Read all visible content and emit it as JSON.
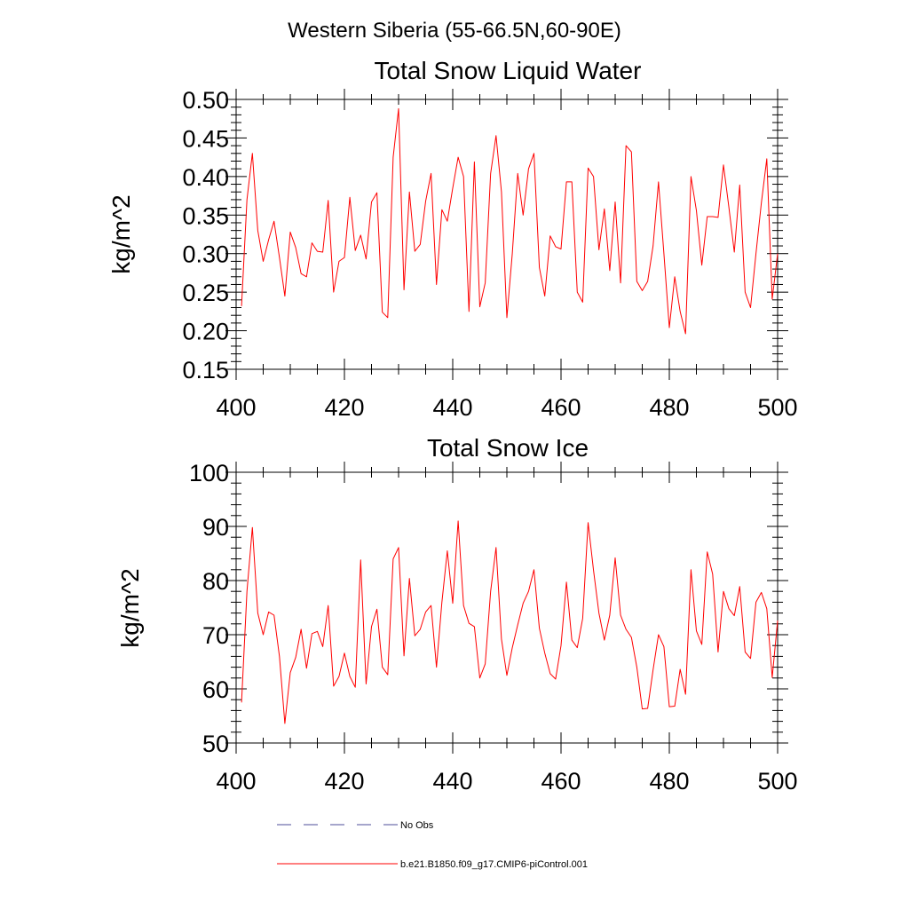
{
  "figure": {
    "title": "Western Siberia (55-66.5N,60-90E)"
  },
  "legend": {
    "entries": [
      {
        "label": "No Obs",
        "color": "#4d4d99",
        "style": "dashed"
      },
      {
        "label": "b.e21.B1850.f09_g17.CMIP6-piControl.001",
        "color": "#ff0000",
        "style": "solid"
      }
    ]
  },
  "chart_data": [
    {
      "type": "line",
      "title": "Total Snow Liquid Water",
      "xlabel": "",
      "ylabel": "kg/m^2",
      "xlim": [
        400,
        500
      ],
      "ylim": [
        0.15,
        0.5
      ],
      "xticks": [
        400,
        420,
        440,
        460,
        480,
        500
      ],
      "yticks": [
        0.15,
        0.2,
        0.25,
        0.3,
        0.35,
        0.4,
        0.45,
        0.5
      ],
      "ytick_labels": [
        "0.15",
        "0.20",
        "0.25",
        "0.30",
        "0.35",
        "0.40",
        "0.45",
        "0.50"
      ],
      "x_start": 401,
      "series": [
        {
          "name": "b.e21.B1850.f09_g17.CMIP6-piControl.001",
          "color": "#ff0000",
          "values": [
            0.232,
            0.37,
            0.43,
            0.33,
            0.29,
            0.318,
            0.342,
            0.295,
            0.245,
            0.328,
            0.308,
            0.274,
            0.27,
            0.314,
            0.303,
            0.302,
            0.369,
            0.25,
            0.29,
            0.295,
            0.373,
            0.304,
            0.324,
            0.293,
            0.367,
            0.379,
            0.224,
            0.217,
            0.425,
            0.488,
            0.253,
            0.38,
            0.303,
            0.312,
            0.368,
            0.404,
            0.26,
            0.357,
            0.342,
            0.385,
            0.425,
            0.4,
            0.225,
            0.419,
            0.231,
            0.262,
            0.404,
            0.453,
            0.38,
            0.217,
            0.3,
            0.404,
            0.35,
            0.41,
            0.43,
            0.282,
            0.245,
            0.323,
            0.309,
            0.306,
            0.393,
            0.393,
            0.25,
            0.237,
            0.411,
            0.4,
            0.305,
            0.358,
            0.278,
            0.367,
            0.262,
            0.44,
            0.432,
            0.264,
            0.252,
            0.264,
            0.31,
            0.393,
            0.3,
            0.204,
            0.27,
            0.225,
            0.196,
            0.4,
            0.356,
            0.285,
            0.348,
            0.348,
            0.347,
            0.415,
            0.36,
            0.302,
            0.389,
            0.25,
            0.23,
            0.3,
            0.366,
            0.423,
            0.241,
            0.3
          ]
        }
      ]
    },
    {
      "type": "line",
      "title": "Total Snow Ice",
      "xlabel": "",
      "ylabel": "kg/m^2",
      "xlim": [
        400,
        500
      ],
      "ylim": [
        50,
        100
      ],
      "xticks": [
        400,
        420,
        440,
        460,
        480,
        500
      ],
      "yticks": [
        50,
        60,
        70,
        80,
        90,
        100
      ],
      "ytick_labels": [
        "50",
        "60",
        "70",
        "80",
        "90",
        "100"
      ],
      "x_start": 401,
      "series": [
        {
          "name": "b.e21.B1850.f09_g17.CMIP6-piControl.001",
          "color": "#ff0000",
          "values": [
            57.5,
            78,
            89.8,
            74,
            70,
            74.2,
            73.6,
            66,
            53.6,
            63,
            65.8,
            71,
            63.8,
            70.2,
            70.6,
            67.8,
            75.4,
            60.5,
            62.3,
            66.6,
            62.3,
            60.3,
            83.8,
            60.9,
            71.5,
            74.7,
            64,
            62.6,
            84,
            86.1,
            66.1,
            80.4,
            69.8,
            71,
            74.2,
            75.4,
            64,
            76,
            85.5,
            75.8,
            91,
            75.4,
            72.1,
            71.5,
            62,
            64.6,
            78,
            86.1,
            69.2,
            62.5,
            67.6,
            71.8,
            75.8,
            78,
            82,
            71.2,
            66.6,
            62.8,
            61.8,
            68,
            79.7,
            69,
            67.6,
            73,
            90.7,
            81.9,
            74,
            69,
            73.6,
            84.2,
            73.6,
            71,
            69.5,
            64,
            56.3,
            56.4,
            63.5,
            70,
            67.8,
            56.7,
            56.8,
            63.6,
            59,
            82,
            70.7,
            68.2,
            85.3,
            81.2,
            66.8,
            78,
            74.8,
            73.5,
            78.9,
            66.8,
            65.6,
            76,
            77.8,
            74.8,
            62.1,
            72.6
          ]
        }
      ]
    }
  ]
}
